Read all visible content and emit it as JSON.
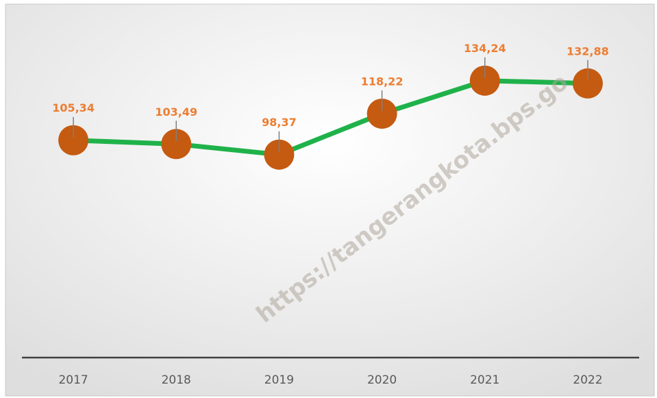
{
  "chart_data": {
    "type": "line",
    "categories": [
      "2017",
      "2018",
      "2019",
      "2020",
      "2021",
      "2022"
    ],
    "series": [
      {
        "color": "#1fb24a",
        "marker_color": "#c55a11",
        "values": [
          105.34,
          103.49,
          98.37,
          118.22,
          134.24,
          132.88
        ],
        "value_labels": [
          "105,34",
          "103,49",
          "98,37",
          "118,22",
          "134,24",
          "132,88"
        ]
      }
    ],
    "ylim": [
      0,
      170
    ],
    "watermark": "https://tangerangkota.bps.go"
  }
}
